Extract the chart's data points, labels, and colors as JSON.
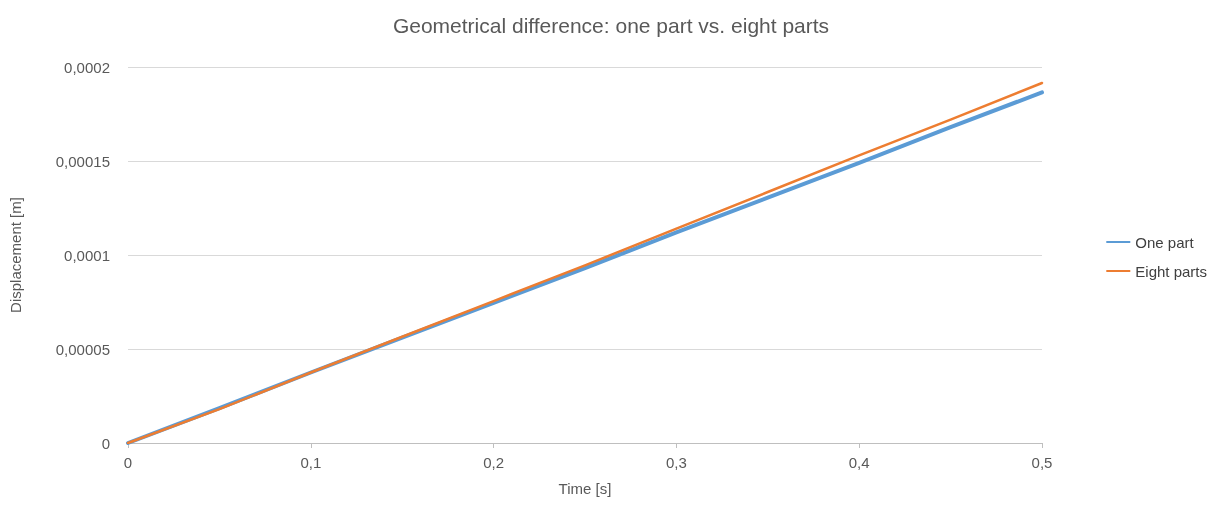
{
  "chart_data": {
    "type": "line",
    "title": "Geometrical difference: one part vs. eight parts",
    "xlabel": "Time [s]",
    "ylabel": "Displacement [m]",
    "x": [
      0,
      0.05,
      0.1,
      0.15,
      0.2,
      0.25,
      0.3,
      0.35,
      0.4,
      0.45,
      0.5
    ],
    "series": [
      {
        "name": "One part",
        "color": "#5b9bd5",
        "values": [
          0,
          1.85e-05,
          3.75e-05,
          5.6e-05,
          7.45e-05,
          9.3e-05,
          0.000112,
          0.0001305,
          0.000149,
          0.000168,
          0.0001865
        ]
      },
      {
        "name": "Eight parts",
        "color": "#ed7d31",
        "values": [
          0,
          1.8e-05,
          3.75e-05,
          5.65e-05,
          7.55e-05,
          9.45e-05,
          0.000114,
          0.0001335,
          0.000153,
          0.000172,
          0.0001915
        ]
      }
    ],
    "xlim": [
      0,
      0.5
    ],
    "xticks": [
      0,
      {
        "value": 0.1,
        "label": "0,1"
      },
      {
        "value": 0.2,
        "label": "0,2"
      },
      {
        "value": 0.3,
        "label": "0,3"
      },
      {
        "value": 0.4,
        "label": "0,4"
      },
      {
        "value": 0.5,
        "label": "0,5"
      }
    ],
    "ylim": [
      0,
      0.0002
    ],
    "yticks": [
      0,
      {
        "value": 5e-05,
        "label": "0,00005"
      },
      {
        "value": 0.0001,
        "label": "0,0001"
      },
      {
        "value": 0.00015,
        "label": "0,00015"
      },
      {
        "value": 0.0002,
        "label": "0,0002"
      }
    ],
    "grid": "y",
    "legend": "right",
    "marker": "none",
    "line_style": "solid"
  }
}
